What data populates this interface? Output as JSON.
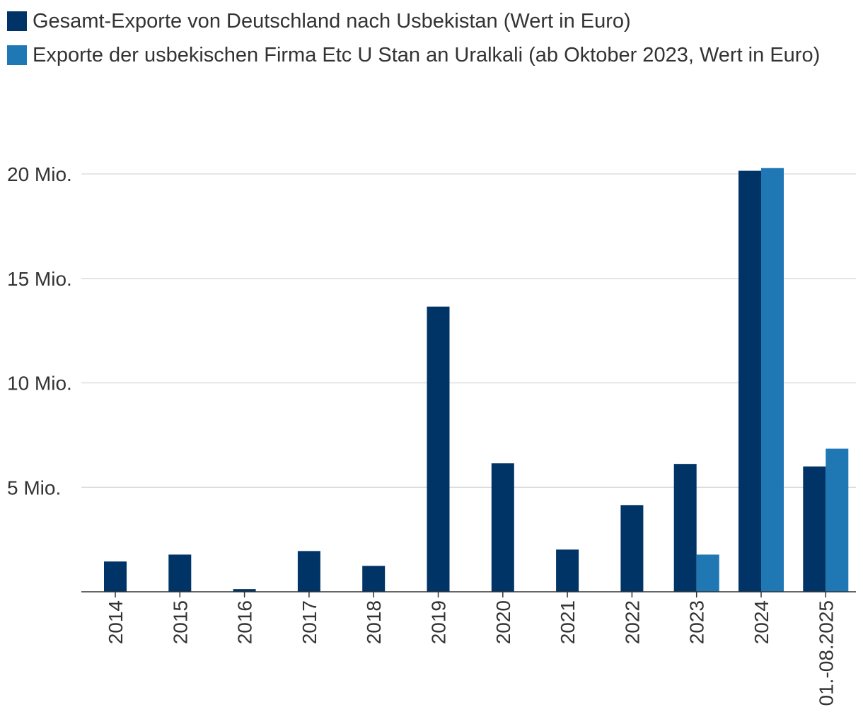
{
  "chart_data": {
    "type": "bar",
    "title": "",
    "xlabel": "",
    "ylabel": "",
    "ylim": [
      0,
      20000000
    ],
    "y_ticks": [
      {
        "value": 5000000,
        "label": "5 Mio."
      },
      {
        "value": 10000000,
        "label": "10 Mio."
      },
      {
        "value": 15000000,
        "label": "15 Mio."
      },
      {
        "value": 20000000,
        "label": "20 Mio."
      }
    ],
    "grid": true,
    "legend_position": "top-left",
    "categories": [
      "2014",
      "2015",
      "2016",
      "2017",
      "2018",
      "2019",
      "2020",
      "2021",
      "2022",
      "2023",
      "2024",
      "01.-08.2025"
    ],
    "series": [
      {
        "name": "Gesamt-Exporte von Deutschland nach Usbekistan (Wert in Euro)",
        "color": "#003366",
        "values": [
          1450000,
          1780000,
          130000,
          1950000,
          1240000,
          13650000,
          6150000,
          2020000,
          4150000,
          6120000,
          20150000,
          6000000
        ]
      },
      {
        "name": "Exporte der usbekischen Firma Etc U Stan an Uralkali (ab Oktober 2023, Wert in Euro)",
        "color": "#1f77b4",
        "values": [
          null,
          null,
          null,
          null,
          null,
          null,
          null,
          null,
          null,
          1780000,
          20280000,
          6850000
        ]
      }
    ]
  }
}
